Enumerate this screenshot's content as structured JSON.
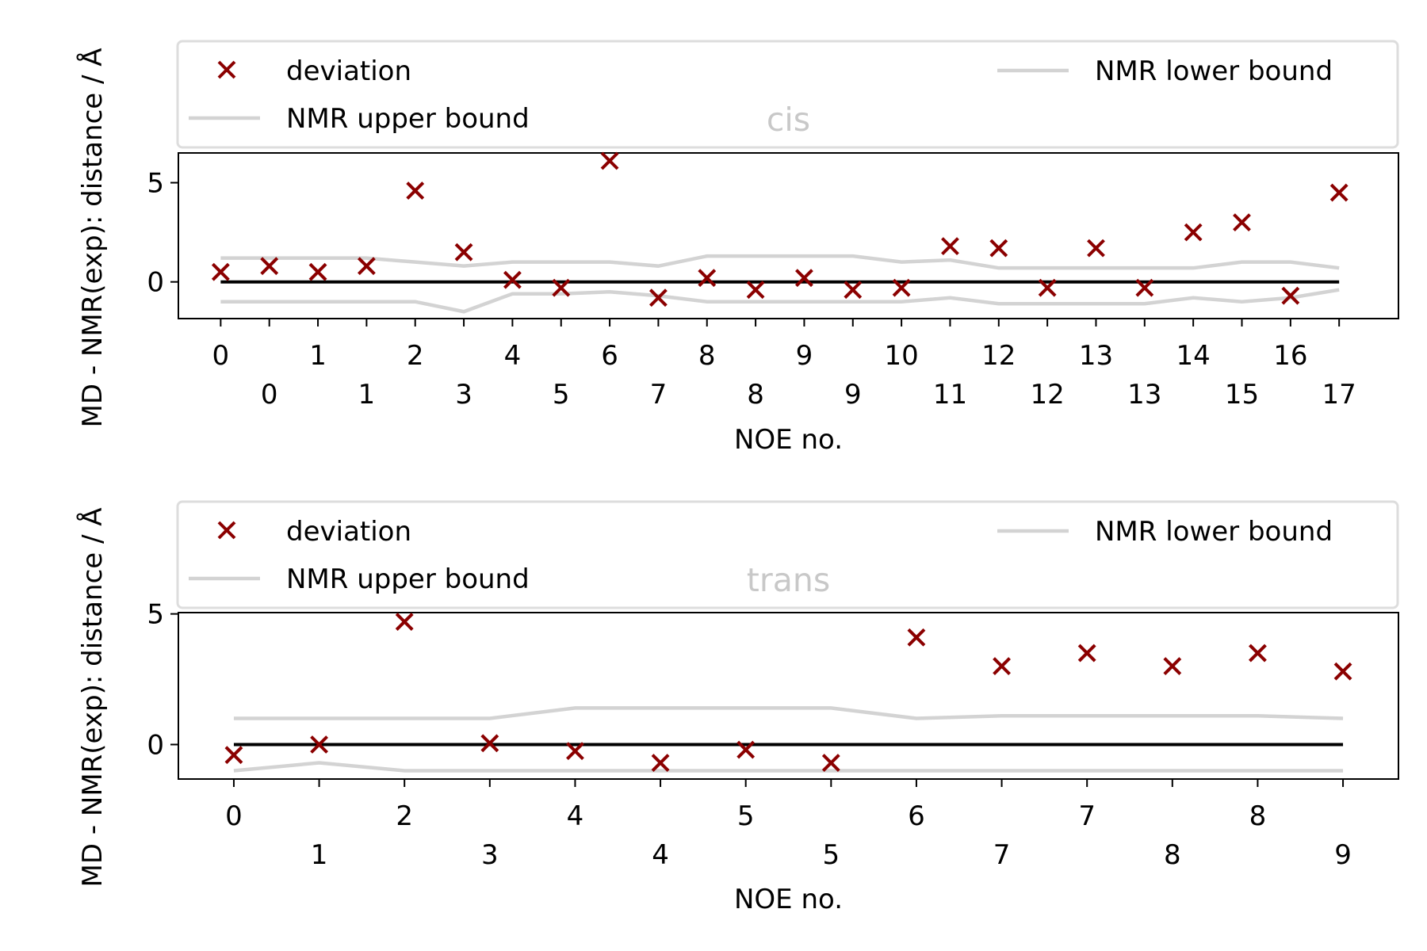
{
  "colors": {
    "deviation": "#8b0000",
    "bound": "#d3d3d3",
    "zero": "#000000",
    "title": "#c8c8c8",
    "axis": "#000000",
    "legend_border": "#dddddd"
  },
  "legend": {
    "deviation": "deviation",
    "lower": "NMR lower bound",
    "upper": "NMR upper bound"
  },
  "chart_data": [
    {
      "type": "scatter",
      "title": "cis",
      "xlabel": "NOE no.",
      "ylabel": "MD - NMR(exp): distance / Å",
      "xlim": [
        -0.87,
        24.22
      ],
      "ylim": [
        -1.85,
        6.5
      ],
      "yticks": [
        0,
        5
      ],
      "xtick_labels_top": [
        "0",
        "1",
        "2",
        "4",
        "6",
        "8",
        "9",
        "10",
        "12",
        "13",
        "14",
        "16"
      ],
      "xtick_labels_bottom": [
        "0",
        "1",
        "3",
        "5",
        "7",
        "8",
        "9",
        "11",
        "12",
        "13",
        "15",
        "17"
      ],
      "legend_position": "top",
      "series": [
        {
          "name": "deviation",
          "marker": "x",
          "values": [
            0.5,
            0.8,
            0.5,
            0.8,
            4.6,
            1.5,
            0.1,
            -0.3,
            6.1,
            -0.8,
            0.2,
            -0.4,
            0.2,
            -0.4,
            -0.3,
            1.8,
            1.7,
            -0.3,
            1.7,
            -0.3,
            2.5,
            3.0,
            -0.7,
            4.5
          ]
        },
        {
          "name": "NMR upper bound",
          "values": [
            1.2,
            1.2,
            1.2,
            1.2,
            1.0,
            0.8,
            1.0,
            1.0,
            1.0,
            0.8,
            1.3,
            1.3,
            1.3,
            1.3,
            1.0,
            1.1,
            0.7,
            0.7,
            0.7,
            0.7,
            0.7,
            1.0,
            1.0,
            0.7
          ]
        },
        {
          "name": "NMR lower bound",
          "values": [
            -1.0,
            -1.0,
            -1.0,
            -1.0,
            -1.0,
            -1.5,
            -0.6,
            -0.6,
            -0.5,
            -0.7,
            -1.0,
            -1.0,
            -1.0,
            -1.0,
            -1.0,
            -0.8,
            -1.1,
            -1.1,
            -1.1,
            -1.1,
            -0.8,
            -1.0,
            -0.8,
            -0.4
          ]
        }
      ]
    },
    {
      "type": "scatter",
      "title": "trans",
      "xlabel": "NOE no.",
      "ylabel": "MD - NMR(exp): distance / Å",
      "xlim": [
        -0.65,
        13.65
      ],
      "ylim": [
        -1.32,
        5.05
      ],
      "yticks": [
        0,
        5
      ],
      "xtick_labels_top": [
        "0",
        "2",
        "4",
        "5",
        "6",
        "7",
        "8"
      ],
      "xtick_labels_bottom": [
        "1",
        "3",
        "4",
        "5",
        "7",
        "8",
        "9"
      ],
      "legend_position": "top",
      "series": [
        {
          "name": "deviation",
          "marker": "x",
          "values": [
            -0.4,
            0.0,
            4.7,
            0.05,
            -0.25,
            -0.7,
            -0.2,
            -0.7,
            4.1,
            3.0,
            3.5,
            3.0,
            3.5,
            2.8
          ]
        },
        {
          "name": "NMR upper bound",
          "values": [
            1.0,
            1.0,
            1.0,
            1.0,
            1.4,
            1.4,
            1.4,
            1.4,
            1.0,
            1.1,
            1.1,
            1.1,
            1.1,
            1.0
          ]
        },
        {
          "name": "NMR lower bound",
          "values": [
            -1.0,
            -0.7,
            -1.0,
            -1.0,
            -1.0,
            -1.0,
            -1.0,
            -1.0,
            -1.0,
            -1.0,
            -1.0,
            -1.0,
            -1.0,
            -1.0
          ]
        }
      ]
    }
  ]
}
